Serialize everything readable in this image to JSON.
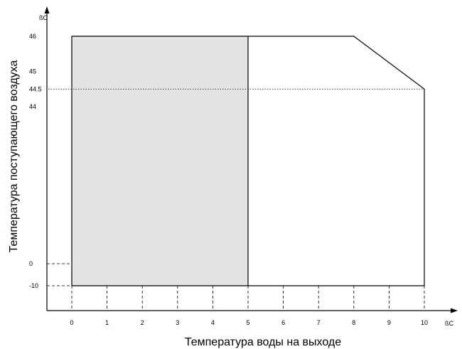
{
  "chart_data": {
    "type": "area",
    "xlabel": "Температура воды на выходе",
    "ylabel": "Температура поступающего воздуха",
    "x_unit": "ßC",
    "y_unit": "ßC",
    "x_ticks": [
      "0",
      "1",
      "2",
      "3",
      "4",
      "5",
      "6",
      "7",
      "8",
      "9",
      "10"
    ],
    "y_ticks": [
      "-10",
      "0",
      "44",
      "44.5",
      "45",
      "46"
    ],
    "axis_break": true,
    "envelope": {
      "x": [
        0,
        0,
        8,
        10,
        10
      ],
      "y": [
        -10,
        46,
        46,
        44.5,
        -10
      ]
    },
    "shaded_region": {
      "x": [
        0,
        5
      ],
      "y": [
        -10,
        46
      ],
      "color": "#e4e4e4"
    },
    "divider_x": 5,
    "reference_line_y": 44.5,
    "colors": {
      "line": "#000000",
      "shade": "#e4e4e4"
    }
  }
}
